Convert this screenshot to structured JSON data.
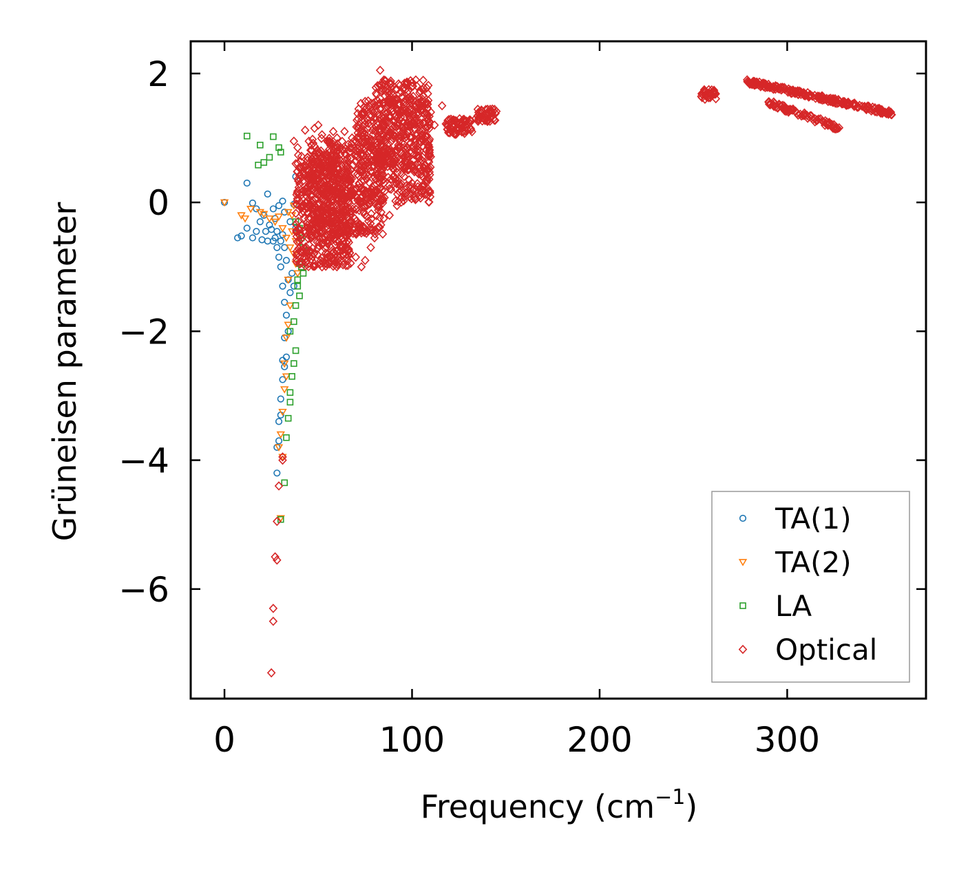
{
  "chart_data": {
    "type": "scatter",
    "xlabel": "Frequency (cm",
    "xlabel_sup": "−1",
    "xlabel_close": ")",
    "ylabel": "Grüneisen parameter",
    "xlim": [
      -18,
      374
    ],
    "ylim": [
      -7.7,
      2.5
    ],
    "xticks": [
      0,
      100,
      200,
      300
    ],
    "xtick_labels": [
      "0",
      "100",
      "200",
      "300"
    ],
    "yticks": [
      2,
      0,
      -2,
      -4,
      -6
    ],
    "ytick_labels": [
      "2",
      "0",
      "−2",
      "−4",
      "−6"
    ],
    "legend_position": "lower-right",
    "series": [
      {
        "name": "TA(1)",
        "marker": "circle",
        "color": "#1f77b4",
        "points": [
          [
            0,
            0
          ],
          [
            7,
            -0.55
          ],
          [
            9,
            -0.52
          ],
          [
            12,
            0.3
          ],
          [
            12,
            -0.4
          ],
          [
            15,
            -0.01
          ],
          [
            15,
            -0.55
          ],
          [
            17,
            -0.1
          ],
          [
            17,
            -0.45
          ],
          [
            19,
            -0.3
          ],
          [
            20,
            -0.58
          ],
          [
            21,
            -0.2
          ],
          [
            22,
            -0.45
          ],
          [
            23,
            0.13
          ],
          [
            23,
            -0.6
          ],
          [
            24,
            -0.35
          ],
          [
            25,
            -0.42
          ],
          [
            26,
            -0.1
          ],
          [
            26,
            -0.6
          ],
          [
            27,
            -0.55
          ],
          [
            27,
            -0.25
          ],
          [
            28,
            -0.7
          ],
          [
            28,
            -0.45
          ],
          [
            29,
            -0.05
          ],
          [
            29,
            -0.85
          ],
          [
            30,
            -0.6
          ],
          [
            30,
            -1.0
          ],
          [
            31,
            0.02
          ],
          [
            31,
            -0.5
          ],
          [
            31,
            -1.3
          ],
          [
            32,
            -0.15
          ],
          [
            32,
            -0.7
          ],
          [
            32,
            -1.55
          ],
          [
            33,
            -0.9
          ],
          [
            33,
            -1.75
          ],
          [
            34,
            -1.2
          ],
          [
            34,
            -2.0
          ],
          [
            35,
            -0.3
          ],
          [
            35,
            -1.4
          ],
          [
            36,
            -1.1
          ],
          [
            37,
            -0.03
          ],
          [
            38,
            -0.4
          ],
          [
            37,
            -1.3
          ],
          [
            32,
            -2.1
          ],
          [
            31,
            -2.45
          ],
          [
            32,
            -2.55
          ],
          [
            33,
            -2.4
          ],
          [
            31,
            -2.75
          ],
          [
            30,
            -3.05
          ],
          [
            30,
            -3.3
          ],
          [
            29,
            -3.4
          ],
          [
            29,
            -3.7
          ],
          [
            28,
            -3.8
          ],
          [
            28,
            -4.2
          ],
          [
            38,
            0.4
          ]
        ]
      },
      {
        "name": "TA(2)",
        "marker": "triangle-down",
        "color": "#ff7f0e",
        "points": [
          [
            0,
            0
          ],
          [
            9,
            -0.2
          ],
          [
            11,
            -0.25
          ],
          [
            14,
            -0.1
          ],
          [
            19,
            -0.15
          ],
          [
            21,
            -0.18
          ],
          [
            24,
            -0.25
          ],
          [
            27,
            -0.3
          ],
          [
            29,
            -0.22
          ],
          [
            31,
            -0.4
          ],
          [
            33,
            -0.55
          ],
          [
            35,
            -0.7
          ],
          [
            36,
            -0.45
          ],
          [
            37,
            -0.8
          ],
          [
            38,
            -0.95
          ],
          [
            38,
            -0.6
          ],
          [
            39,
            -0.5
          ],
          [
            39,
            -1.1
          ],
          [
            34,
            -1.2
          ],
          [
            35,
            -1.6
          ],
          [
            34,
            -1.9
          ],
          [
            33,
            -2.1
          ],
          [
            32,
            -2.5
          ],
          [
            33,
            -2.7
          ],
          [
            32,
            -2.9
          ],
          [
            31,
            -3.25
          ],
          [
            30,
            -3.6
          ],
          [
            29,
            -3.8
          ],
          [
            31,
            -3.95
          ],
          [
            30,
            -4.9
          ],
          [
            34,
            -0.15
          ],
          [
            36,
            -0.2
          ],
          [
            37,
            -0.05
          ]
        ]
      },
      {
        "name": "LA",
        "marker": "square",
        "color": "#2ca02c",
        "points": [
          [
            12,
            1.03
          ],
          [
            19,
            0.89
          ],
          [
            24,
            0.7
          ],
          [
            26,
            1.02
          ],
          [
            29,
            0.85
          ],
          [
            30,
            0.78
          ],
          [
            18,
            0.58
          ],
          [
            21,
            0.62
          ],
          [
            38,
            -0.3
          ],
          [
            40,
            -0.4
          ],
          [
            41,
            -0.55
          ],
          [
            42,
            -0.7
          ],
          [
            44,
            -0.75
          ],
          [
            40,
            -0.95
          ],
          [
            42,
            -1.1
          ],
          [
            39,
            -1.3
          ],
          [
            40,
            -1.45
          ],
          [
            38,
            -1.6
          ],
          [
            37,
            -1.85
          ],
          [
            38,
            -2.3
          ],
          [
            37,
            -2.5
          ],
          [
            36,
            -2.7
          ],
          [
            35,
            -2.95
          ],
          [
            35,
            -3.1
          ],
          [
            34,
            -3.35
          ],
          [
            33,
            -3.65
          ],
          [
            32,
            -4.35
          ],
          [
            30,
            -4.92
          ],
          [
            35,
            -2.0
          ],
          [
            39,
            -1.2
          ],
          [
            41,
            -1.0
          ]
        ]
      },
      {
        "name": "Optical",
        "marker": "diamond",
        "color": "#d62728",
        "points": [
          [
            25,
            -7.3
          ],
          [
            26,
            -6.3
          ],
          [
            26,
            -6.5
          ],
          [
            27,
            -5.5
          ],
          [
            28,
            -5.55
          ],
          [
            28,
            -4.95
          ],
          [
            29,
            -4.4
          ],
          [
            31,
            -3.95
          ],
          [
            31,
            -4.0
          ],
          [
            37,
            0.95
          ],
          [
            38,
            0.6
          ],
          [
            39,
            0.85
          ],
          [
            42,
            0.55
          ],
          [
            43,
            1.12
          ],
          [
            45,
            0.95
          ],
          [
            48,
            1.15
          ],
          [
            50,
            1.2
          ],
          [
            52,
            1.05
          ],
          [
            55,
            0.95
          ],
          [
            58,
            1.1
          ],
          [
            60,
            1.0
          ],
          [
            62,
            0.85
          ],
          [
            64,
            1.1
          ],
          [
            66,
            0.9
          ],
          [
            68,
            1.0
          ],
          [
            70,
            0.8
          ],
          [
            83,
            2.05
          ],
          [
            85,
            1.9
          ],
          [
            87,
            1.75
          ],
          [
            96,
            1.85
          ],
          [
            100,
            1.8
          ],
          [
            102,
            1.9
          ],
          [
            104,
            1.7
          ],
          [
            106,
            1.5
          ],
          [
            110,
            1.4
          ],
          [
            112,
            1.2
          ],
          [
            116,
            1.5
          ],
          [
            45,
            -0.85
          ],
          [
            48,
            -0.95
          ],
          [
            52,
            -1.0
          ],
          [
            55,
            -0.8
          ],
          [
            60,
            -0.75
          ],
          [
            65,
            -0.7
          ],
          [
            70,
            -0.85
          ],
          [
            73,
            -1.0
          ],
          [
            75,
            -0.9
          ],
          [
            78,
            -0.7
          ],
          [
            80,
            -0.55
          ],
          [
            88,
            -0.2
          ],
          [
            92,
            -0.05
          ],
          [
            97,
            0.15
          ],
          [
            100,
            0.3
          ],
          [
            105,
            0.5
          ],
          [
            108,
            0.35
          ]
        ],
        "clusters": [
          {
            "x": [
              38,
              68
            ],
            "y": [
              -1.0,
              0.75
            ],
            "count": 520
          },
          {
            "x": [
              45,
              85
            ],
            "y": [
              -0.5,
              1.0
            ],
            "count": 420
          },
          {
            "x": [
              70,
              110
            ],
            "y": [
              0.0,
              1.6
            ],
            "count": 420
          },
          {
            "x": [
              80,
              110
            ],
            "y": [
              0.5,
              1.9
            ],
            "count": 240
          },
          {
            "x": [
              118,
              132
            ],
            "y": [
              1.05,
              1.3
            ],
            "count": 70
          },
          {
            "x": [
              134,
              145
            ],
            "y": [
              1.25,
              1.45
            ],
            "count": 50
          },
          {
            "x": [
              254,
              262
            ],
            "y": [
              1.6,
              1.75
            ],
            "count": 30
          }
        ],
        "bands": [
          {
            "x": [
              278,
              356
            ],
            "y": [
              1.88,
              1.38
            ],
            "width": 0.07,
            "count": 240
          },
          {
            "x": [
              290,
              328
            ],
            "y": [
              1.55,
              1.15
            ],
            "width": 0.08,
            "count": 90
          }
        ]
      }
    ]
  }
}
